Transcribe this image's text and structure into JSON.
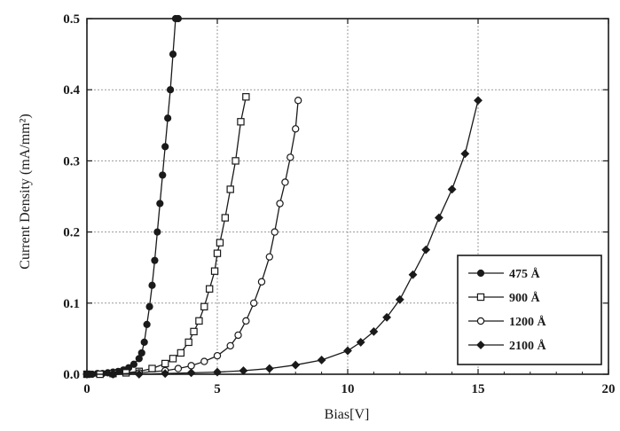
{
  "chart_data": {
    "type": "line",
    "title": "",
    "xlabel": "Bias[V]",
    "ylabel": "Current Density (mA/mm²)",
    "xlim": [
      0,
      20
    ],
    "ylim": [
      0,
      0.5
    ],
    "x_ticks": [
      "0",
      "5",
      "10",
      "15",
      "20"
    ],
    "y_ticks": [
      "0.0",
      "0.1",
      "0.2",
      "0.3",
      "0.4",
      "0.5"
    ],
    "grid": true,
    "legend_position": "bottom-right",
    "series": [
      {
        "name": "475 Å",
        "marker": "filled-circle",
        "x": [
          0,
          0.2,
          0.4,
          0.6,
          0.8,
          1.0,
          1.2,
          1.4,
          1.6,
          1.8,
          2.0,
          2.1,
          2.2,
          2.3,
          2.4,
          2.5,
          2.6,
          2.7,
          2.8,
          2.9,
          3.0,
          3.1,
          3.2,
          3.3,
          3.4,
          3.5
        ],
        "y": [
          0.0,
          0.0,
          0.001,
          0.001,
          0.002,
          0.003,
          0.004,
          0.006,
          0.009,
          0.014,
          0.022,
          0.03,
          0.045,
          0.07,
          0.095,
          0.125,
          0.16,
          0.2,
          0.24,
          0.28,
          0.32,
          0.36,
          0.4,
          0.45,
          0.5,
          0.5
        ]
      },
      {
        "name": "900 Å",
        "marker": "open-square",
        "x": [
          0,
          0.5,
          1.0,
          1.5,
          2.0,
          2.5,
          3.0,
          3.3,
          3.6,
          3.9,
          4.1,
          4.3,
          4.5,
          4.7,
          4.9,
          5.0,
          5.1,
          5.3,
          5.5,
          5.7,
          5.9,
          6.1
        ],
        "y": [
          0.0,
          0.0,
          0.001,
          0.002,
          0.004,
          0.008,
          0.015,
          0.022,
          0.03,
          0.045,
          0.06,
          0.075,
          0.095,
          0.12,
          0.145,
          0.17,
          0.185,
          0.22,
          0.26,
          0.3,
          0.355,
          0.39
        ]
      },
      {
        "name": "1200 Å",
        "marker": "open-circle",
        "x": [
          0,
          1,
          2,
          3,
          3.5,
          4.0,
          4.5,
          5.0,
          5.5,
          5.8,
          6.1,
          6.4,
          6.7,
          7.0,
          7.2,
          7.4,
          7.6,
          7.8,
          8.0,
          8.1
        ],
        "y": [
          0.0,
          0.0,
          0.002,
          0.005,
          0.008,
          0.012,
          0.018,
          0.026,
          0.04,
          0.055,
          0.075,
          0.1,
          0.13,
          0.165,
          0.2,
          0.24,
          0.27,
          0.305,
          0.345,
          0.385
        ]
      },
      {
        "name": "2100 Å",
        "marker": "filled-diamond",
        "x": [
          0,
          1,
          2,
          3,
          4,
          5,
          6,
          7,
          8,
          9,
          10,
          10.5,
          11,
          11.5,
          12,
          12.5,
          13,
          13.5,
          14,
          14.5,
          15
        ],
        "y": [
          0.0,
          0.0,
          0.0,
          0.001,
          0.002,
          0.003,
          0.005,
          0.008,
          0.013,
          0.02,
          0.033,
          0.045,
          0.06,
          0.08,
          0.105,
          0.14,
          0.175,
          0.22,
          0.26,
          0.31,
          0.385
        ]
      }
    ]
  },
  "colors": {
    "line": "#1a1a1a",
    "grid": "#9a9a9a",
    "background": "#ffffff"
  }
}
